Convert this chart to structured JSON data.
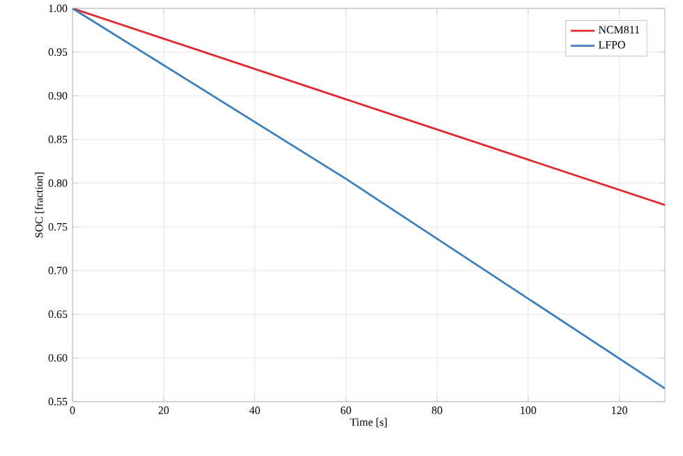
{
  "chart_data": {
    "type": "line",
    "xlabel": "Time [s]",
    "ylabel": "SOC [fraction]",
    "series": [
      {
        "name": "NCM811",
        "color": "#e0282e",
        "x": [
          0,
          60,
          130
        ],
        "values": [
          1.0,
          0.896,
          0.775
        ]
      },
      {
        "name": "LFPO",
        "color": "#3b7fbf",
        "x": [
          0,
          60,
          130
        ],
        "values": [
          1.0,
          0.805,
          0.565
        ]
      }
    ],
    "xlim": [
      0,
      130
    ],
    "ylim": [
      0.55,
      1.0
    ],
    "xticks": [
      0,
      20,
      40,
      60,
      80,
      100,
      120
    ],
    "yticks": [
      {
        "value": 0.55,
        "label": "0.55"
      },
      {
        "value": 0.6,
        "label": "0.60"
      },
      {
        "value": 0.65,
        "label": "0.65"
      },
      {
        "value": 0.7,
        "label": "0.70"
      },
      {
        "value": 0.75,
        "label": "0.75"
      },
      {
        "value": 0.8,
        "label": "0.80"
      },
      {
        "value": 0.85,
        "label": "0.85"
      },
      {
        "value": 0.9,
        "label": "0.90"
      },
      {
        "value": 0.95,
        "label": "0.95"
      },
      {
        "value": 1.0,
        "label": "1.00"
      }
    ],
    "grid": true,
    "legend": "top right",
    "marker": "none",
    "line_style": "solid"
  }
}
